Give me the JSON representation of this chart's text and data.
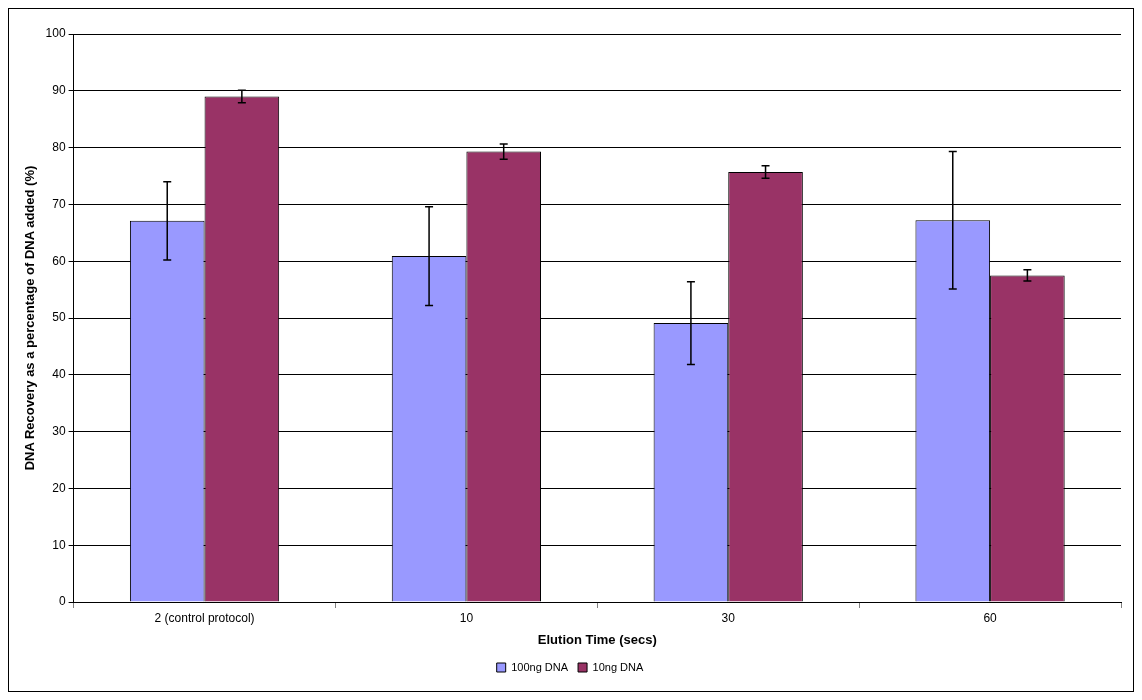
{
  "chart_data": {
    "type": "bar",
    "xlabel": "Elution Time (secs)",
    "ylabel": "DNA Recovery as a percentage of DNA added (%)",
    "categories": [
      "2 (control protocol)",
      "10",
      "30",
      "60"
    ],
    "series": [
      {
        "name": "100ng DNA",
        "color": "#9999ff",
        "values": [
          67.1,
          60.9,
          49.1,
          67.2
        ],
        "errors": [
          6.9,
          8.7,
          7.3,
          12.1
        ]
      },
      {
        "name": "10ng DNA",
        "color": "#993366",
        "values": [
          89.0,
          79.3,
          75.7,
          57.5
        ],
        "errors": [
          1.1,
          1.35,
          1.1,
          1.0
        ]
      }
    ],
    "ylim": [
      0,
      100
    ],
    "yticks": [
      0,
      10,
      20,
      30,
      40,
      50,
      60,
      70,
      80,
      90,
      100
    ],
    "grid": "y",
    "legend": "bottom"
  }
}
